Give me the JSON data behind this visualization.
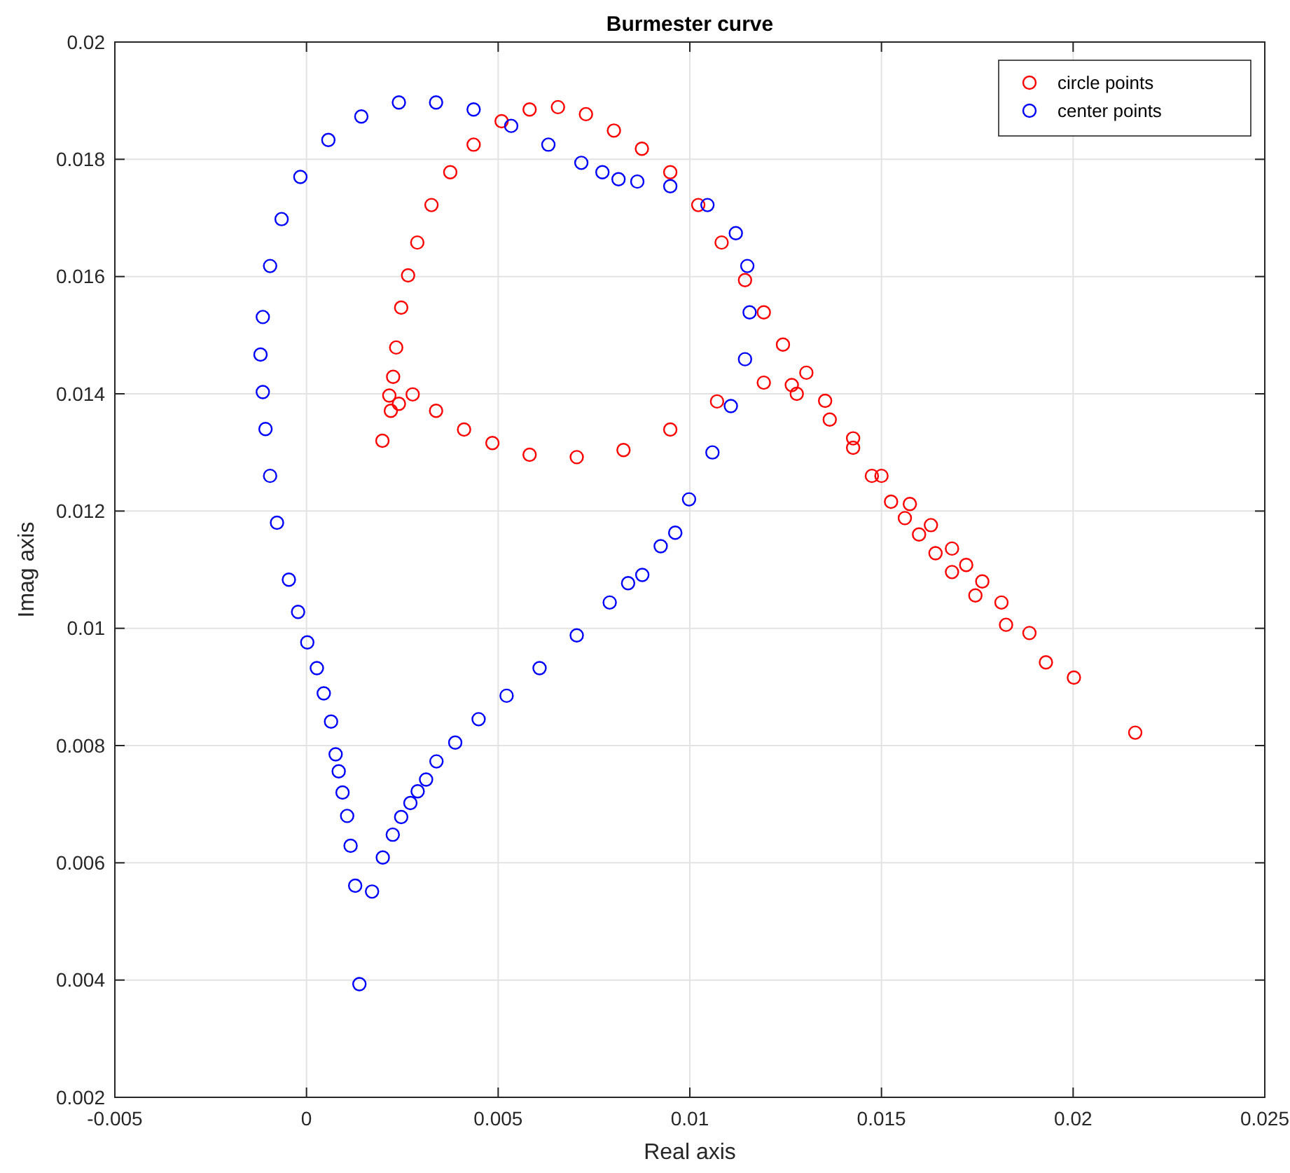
{
  "chart_data": {
    "type": "scatter",
    "title": "Burmester curve",
    "xlabel": "Real axis",
    "ylabel": "Imag axis",
    "xlim": [
      -0.005,
      0.025
    ],
    "xticks": [
      -0.005,
      0,
      0.005,
      0.01,
      0.015,
      0.02,
      0.025
    ],
    "ylim": [
      0.002,
      0.02
    ],
    "yticks": [
      0.002,
      0.004,
      0.006,
      0.008,
      0.01,
      0.012,
      0.014,
      0.016,
      0.018,
      0.02
    ],
    "grid": true,
    "legend": "top right",
    "marker": "circle",
    "series": [
      {
        "name": "circle points",
        "color": "#ff0000",
        "x": [
          0.00198,
          0.0022,
          0.00216,
          0.00226,
          0.00234,
          0.00247,
          0.00265,
          0.00289,
          0.00326,
          0.00375,
          0.00436,
          0.00509,
          0.00582,
          0.00656,
          0.00729,
          0.00802,
          0.00875,
          0.00949,
          0.01022,
          0.01083,
          0.01144,
          0.01193,
          0.01243,
          0.01304,
          0.01353,
          0.01426,
          0.015,
          0.01574,
          0.01629,
          0.01684,
          0.01721,
          0.01763,
          0.01813,
          0.01886,
          0.02002,
          0.02162,
          0.00241,
          0.00277,
          0.00338,
          0.00411,
          0.00485,
          0.00582,
          0.00705,
          0.00827,
          0.00949,
          0.01071,
          0.01193,
          0.01266,
          0.01279,
          0.01365,
          0.01426,
          0.01475,
          0.01525,
          0.01561,
          0.01598,
          0.01641,
          0.01684,
          0.01745,
          0.01825,
          0.01929
        ],
        "values": [
          0.0132,
          0.01371,
          0.01397,
          0.01429,
          0.01479,
          0.01547,
          0.01602,
          0.01658,
          0.01722,
          0.01778,
          0.01825,
          0.01865,
          0.01885,
          0.01889,
          0.01877,
          0.01849,
          0.01818,
          0.01778,
          0.01722,
          0.01658,
          0.01594,
          0.01539,
          0.01484,
          0.01436,
          0.01388,
          0.01324,
          0.0126,
          0.01212,
          0.01176,
          0.01136,
          0.01108,
          0.0108,
          0.01044,
          0.00992,
          0.00916,
          0.00822,
          0.01383,
          0.01399,
          0.01371,
          0.01339,
          0.01316,
          0.01296,
          0.01292,
          0.01304,
          0.01339,
          0.01387,
          0.01419,
          0.01415,
          0.014,
          0.01356,
          0.01308,
          0.0126,
          0.01216,
          0.01188,
          0.0116,
          0.01128,
          0.01096,
          0.01056,
          0.01006,
          0.00942
        ]
      },
      {
        "name": "center points",
        "color": "#0000ff",
        "x": [
          -0.0012,
          -0.00114,
          -0.00095,
          -0.00065,
          -0.00016,
          0.00057,
          0.00143,
          0.00241,
          0.00338,
          0.00436,
          0.00534,
          0.00631,
          0.00717,
          0.00772,
          0.00814,
          0.00863,
          0.00949,
          0.01046,
          0.0112,
          0.0115,
          0.01156,
          0.01144,
          0.01107,
          0.01059,
          0.00998,
          0.00924,
          0.00839,
          -0.00114,
          -0.00107,
          -0.00095,
          -0.00077,
          -0.00046,
          -0.00022,
          2e-05,
          0.00027,
          0.00045,
          0.00064,
          0.00076,
          0.00084,
          0.00094,
          0.00106,
          0.00115,
          0.00127,
          0.00138,
          0.00171,
          0.00199,
          0.00225,
          0.00247,
          0.00271,
          0.0029,
          0.00312,
          0.00339,
          0.00388,
          0.00449,
          0.00522,
          0.00608,
          0.00705,
          0.00791,
          0.00876,
          0.00962
        ],
        "values": [
          0.01467,
          0.01531,
          0.01618,
          0.01698,
          0.0177,
          0.01833,
          0.01873,
          0.01897,
          0.01897,
          0.01885,
          0.01857,
          0.01825,
          0.01794,
          0.01778,
          0.01766,
          0.01762,
          0.01754,
          0.01722,
          0.01674,
          0.01618,
          0.01539,
          0.01459,
          0.01379,
          0.013,
          0.0122,
          0.0114,
          0.01077,
          0.01403,
          0.0134,
          0.0126,
          0.0118,
          0.01083,
          0.01028,
          0.00976,
          0.00932,
          0.00889,
          0.00841,
          0.00785,
          0.00756,
          0.0072,
          0.0068,
          0.00629,
          0.00561,
          0.00393,
          0.00551,
          0.00609,
          0.00648,
          0.00678,
          0.00702,
          0.00722,
          0.00742,
          0.00773,
          0.00805,
          0.00845,
          0.00885,
          0.00932,
          0.00988,
          0.01044,
          0.01091,
          0.01163
        ]
      }
    ]
  }
}
